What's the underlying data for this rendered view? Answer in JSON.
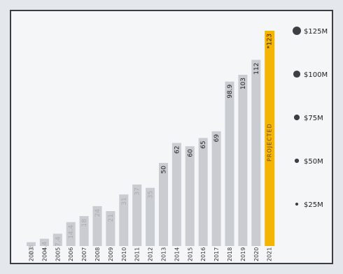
{
  "chart_data": {
    "type": "bar",
    "categories": [
      "2003",
      "2004",
      "2005",
      "2006",
      "2007",
      "2008",
      "2009",
      "2010",
      "2011",
      "2012",
      "2013",
      "2014",
      "2015",
      "2016",
      "2017",
      "2018",
      "2019",
      "2020",
      "2021"
    ],
    "values": [
      2.3,
      4.4,
      7.4,
      14.4,
      18,
      24,
      21,
      31,
      37,
      35,
      50,
      62,
      60,
      65,
      69,
      98.9,
      103,
      112,
      123
    ],
    "data_labels": [
      "2.3",
      "4.4",
      "7.4",
      "14.4",
      "18",
      "24",
      "21",
      "31",
      "37",
      "35",
      "50",
      "62",
      "60",
      "65",
      "69",
      "98.9",
      "103",
      "112",
      "*123"
    ],
    "projected_index": 18,
    "projected_label": "PROJECTED",
    "ylim": [
      0,
      132
    ],
    "scale_legend": [
      {
        "label": "$125M",
        "value": 125
      },
      {
        "label": "$100M",
        "value": 100
      },
      {
        "label": "$75M",
        "value": 75
      },
      {
        "label": "$50M",
        "value": 50
      },
      {
        "label": "$25M",
        "value": 25
      }
    ],
    "colors": {
      "bar": "#c9ccd1",
      "projected": "#f5b400",
      "label_light": "#a9adb3",
      "label_dark": "#1c1f24",
      "dot": "#3c3f44"
    }
  }
}
